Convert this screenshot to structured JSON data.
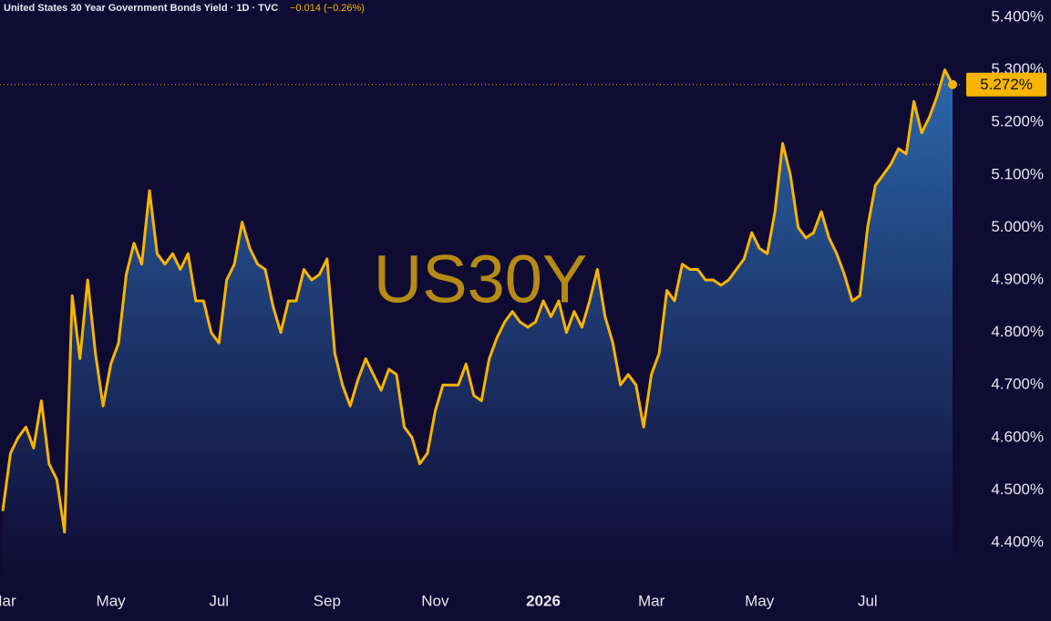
{
  "chart_data": {
    "type": "line",
    "title": "United States 30 Year Government Bonds Yield · 1D · TVC",
    "change_text": "−0.014 (−0.26%)",
    "watermark": "US30Y",
    "price_label": {
      "value": 5.272,
      "label": "5.272%"
    },
    "categories": [
      "Mar",
      null,
      null,
      null,
      null,
      null,
      null,
      null,
      null,
      null,
      null,
      null,
      null,
      null,
      "May",
      null,
      null,
      null,
      null,
      null,
      null,
      null,
      null,
      null,
      null,
      null,
      null,
      null,
      "Jul",
      null,
      null,
      null,
      null,
      null,
      null,
      null,
      null,
      null,
      null,
      null,
      null,
      null,
      "Sep",
      null,
      null,
      null,
      null,
      null,
      null,
      null,
      null,
      null,
      null,
      null,
      null,
      null,
      "Nov",
      null,
      null,
      null,
      null,
      null,
      null,
      null,
      null,
      null,
      null,
      null,
      null,
      null,
      "2026",
      null,
      null,
      null,
      null,
      null,
      null,
      null,
      null,
      null,
      null,
      null,
      null,
      null,
      "Mar",
      null,
      null,
      null,
      null,
      null,
      null,
      null,
      null,
      null,
      null,
      null,
      null,
      null,
      "May",
      null,
      null,
      null,
      null,
      null,
      null,
      null,
      null,
      null,
      null,
      null,
      null,
      null,
      "Jul",
      null,
      null,
      null,
      null,
      null,
      null,
      null,
      null,
      null,
      null,
      null
    ],
    "series": [
      {
        "name": "US30Y",
        "color": "#f7b500",
        "values": [
          4.46,
          4.57,
          4.6,
          4.62,
          4.58,
          4.67,
          4.55,
          4.52,
          4.42,
          4.87,
          4.75,
          4.9,
          4.76,
          4.66,
          4.74,
          4.78,
          4.91,
          4.97,
          4.93,
          5.07,
          4.95,
          4.93,
          4.95,
          4.92,
          4.95,
          4.86,
          4.86,
          4.8,
          4.78,
          4.9,
          4.93,
          5.01,
          4.96,
          4.93,
          4.92,
          4.85,
          4.8,
          4.86,
          4.86,
          4.92,
          4.9,
          4.91,
          4.94,
          4.76,
          4.7,
          4.66,
          4.71,
          4.75,
          4.72,
          4.69,
          4.73,
          4.72,
          4.62,
          4.6,
          4.55,
          4.57,
          4.65,
          4.7,
          4.7,
          4.7,
          4.74,
          4.68,
          4.67,
          4.75,
          4.79,
          4.82,
          4.84,
          4.82,
          4.81,
          4.82,
          4.86,
          4.83,
          4.86,
          4.8,
          4.84,
          4.81,
          4.86,
          4.92,
          4.83,
          4.78,
          4.7,
          4.72,
          4.7,
          4.62,
          4.72,
          4.76,
          4.88,
          4.86,
          4.93,
          4.92,
          4.92,
          4.9,
          4.9,
          4.89,
          4.9,
          4.92,
          4.94,
          4.99,
          4.96,
          4.95,
          5.03,
          5.16,
          5.1,
          5.0,
          4.98,
          4.99,
          5.03,
          4.98,
          4.95,
          4.91,
          4.86,
          4.87,
          5.0,
          5.08,
          5.1,
          5.12,
          5.15,
          5.14,
          5.24,
          5.18,
          5.21,
          5.25,
          5.3,
          5.272
        ]
      }
    ],
    "ylim": [
      4.3,
      5.45
    ],
    "yticks": [
      {
        "value": 4.4,
        "label": "4.400%"
      },
      {
        "value": 4.5,
        "label": "4.500%"
      },
      {
        "value": 4.6,
        "label": "4.600%"
      },
      {
        "value": 4.7,
        "label": "4.700%"
      },
      {
        "value": 4.8,
        "label": "4.800%"
      },
      {
        "value": 4.9,
        "label": "4.900%"
      },
      {
        "value": 5.0,
        "label": "5.000%"
      },
      {
        "value": 5.1,
        "label": "5.100%"
      },
      {
        "value": 5.2,
        "label": "5.200%"
      },
      {
        "value": 5.3,
        "label": "5.300%"
      },
      {
        "value": 5.4,
        "label": "5.400%"
      }
    ]
  }
}
